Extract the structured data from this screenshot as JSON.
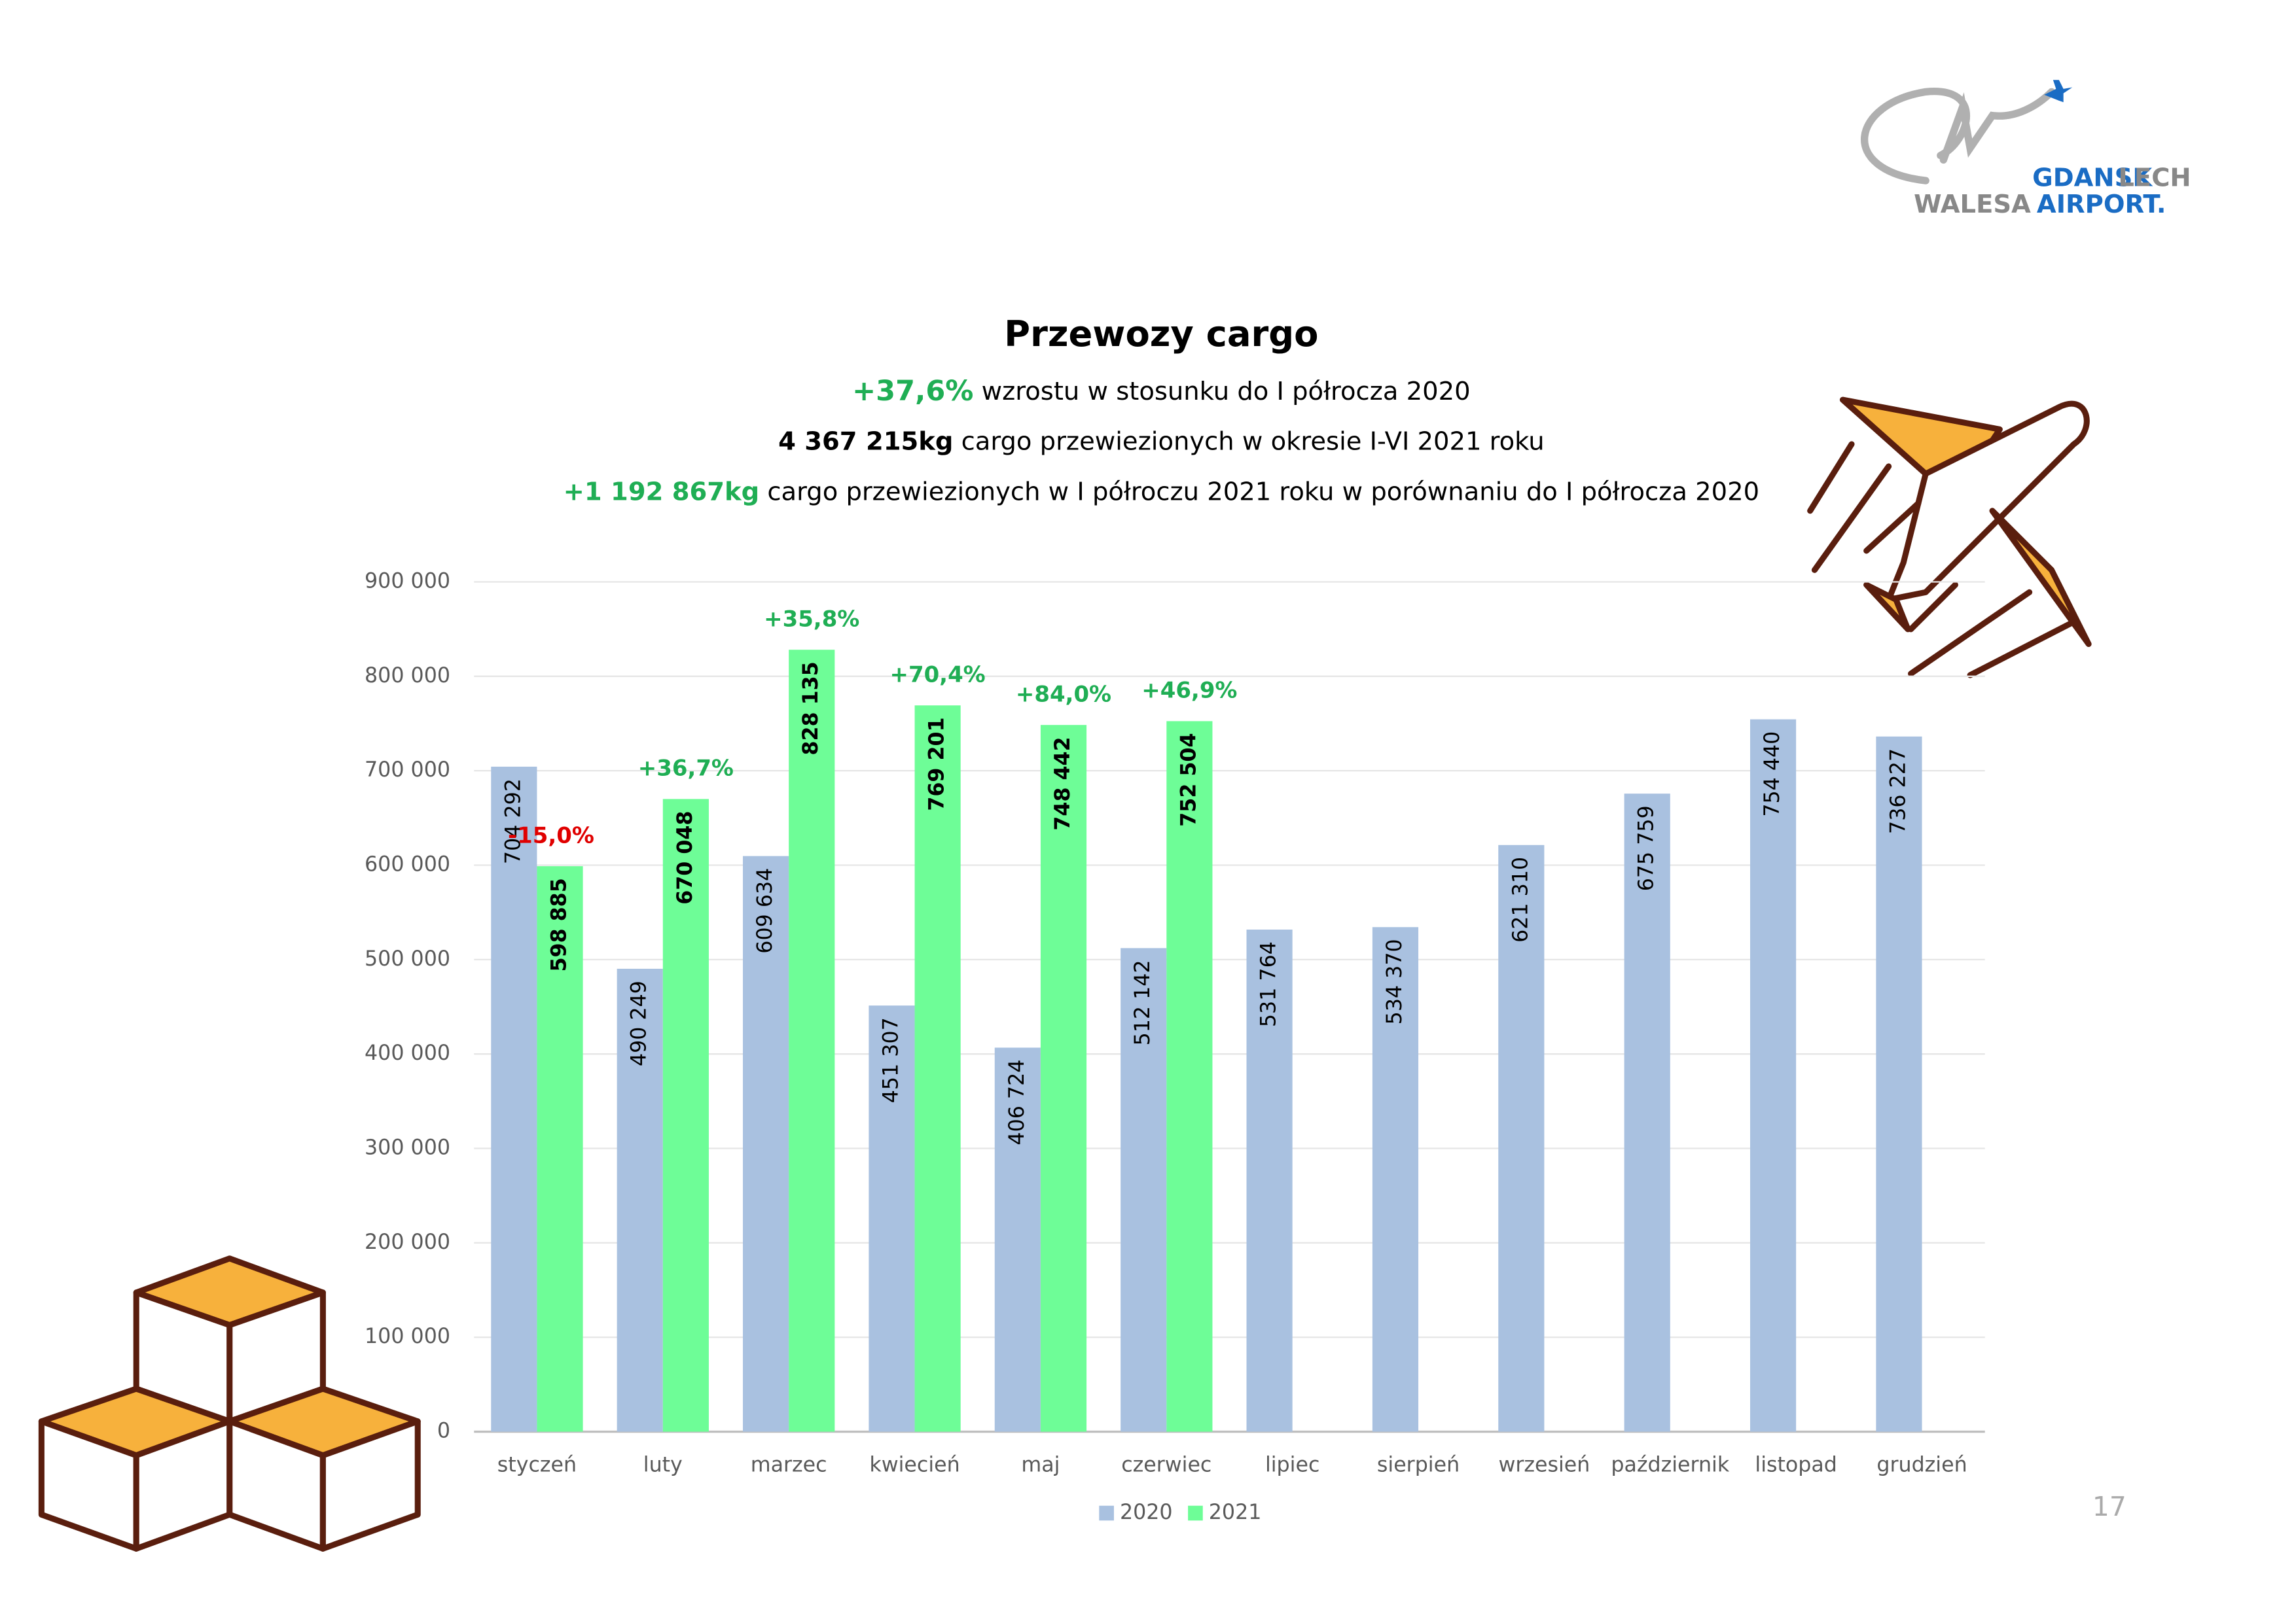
{
  "chart_data": {
    "type": "bar",
    "title": "Przewozy cargo",
    "subtitle_lines": [
      {
        "highlight": "+37,6%",
        "highlight_color": "#1fae54",
        "text": "wzrostu w stosunku do I półrocza 2020"
      },
      {
        "highlight": "4 367 215kg",
        "highlight_color": "#000000",
        "text": "cargo przewiezionych w okresie I-VI 2021 roku"
      },
      {
        "highlight": "+1 192 867kg",
        "highlight_color": "#1fae54",
        "text": "cargo przewiezionych w I półroczu 2021 roku w porównaniu do I półrocza 2020"
      }
    ],
    "categories": [
      "styczeń",
      "luty",
      "marzec",
      "kwiecień",
      "maj",
      "czerwiec",
      "lipiec",
      "sierpień",
      "wrzesień",
      "październik",
      "listopad",
      "grudzień"
    ],
    "series": [
      {
        "name": "2020",
        "color": "#a9c1e0",
        "bold_labels": false,
        "values": [
          704292,
          490249,
          609634,
          451307,
          406724,
          512142,
          531764,
          534370,
          621310,
          675759,
          754440,
          736227
        ],
        "value_labels": [
          "704 292",
          "490 249",
          "609 634",
          "451 307",
          "406 724",
          "512 142",
          "531 764",
          "534 370",
          "621 310",
          "675 759",
          "754 440",
          "736 227"
        ]
      },
      {
        "name": "2021",
        "color": "#6efd97",
        "bold_labels": true,
        "values": [
          598885,
          670048,
          828135,
          769201,
          748442,
          752504,
          null,
          null,
          null,
          null,
          null,
          null
        ],
        "value_labels": [
          "598 885",
          "670 048",
          "828 135",
          "769 201",
          "748 442",
          "752 504",
          null,
          null,
          null,
          null,
          null,
          null
        ],
        "change_labels": [
          {
            "text": "-15,0%",
            "color": "#e00000"
          },
          {
            "text": "+36,7%",
            "color": "#1fae54"
          },
          {
            "text": "+35,8%",
            "color": "#1fae54"
          },
          {
            "text": "+70,4%",
            "color": "#1fae54"
          },
          {
            "text": "+84,0%",
            "color": "#1fae54"
          },
          {
            "text": "+46,9%",
            "color": "#1fae54"
          },
          null,
          null,
          null,
          null,
          null,
          null
        ]
      }
    ],
    "ylim": [
      0,
      900000
    ],
    "yticks": [
      0,
      {
        "value": 100000,
        "label": "100 000"
      },
      {
        "value": 200000,
        "label": "200 000"
      },
      {
        "value": 300000,
        "label": "300 000"
      },
      {
        "value": 400000,
        "label": "400 000"
      },
      {
        "value": 500000,
        "label": "500 000"
      },
      {
        "value": 600000,
        "label": "600 000"
      },
      {
        "value": 700000,
        "label": "700 000"
      },
      {
        "value": 800000,
        "label": "800 000"
      },
      {
        "value": 900000,
        "label": "900 000"
      }
    ],
    "grid": true,
    "legend": "bottom"
  },
  "logo": {
    "line1a": "GDANSK",
    "line1b": "LECH",
    "line2a": "WALESA",
    "line2b": "AIRPORT."
  },
  "page_number": "17"
}
